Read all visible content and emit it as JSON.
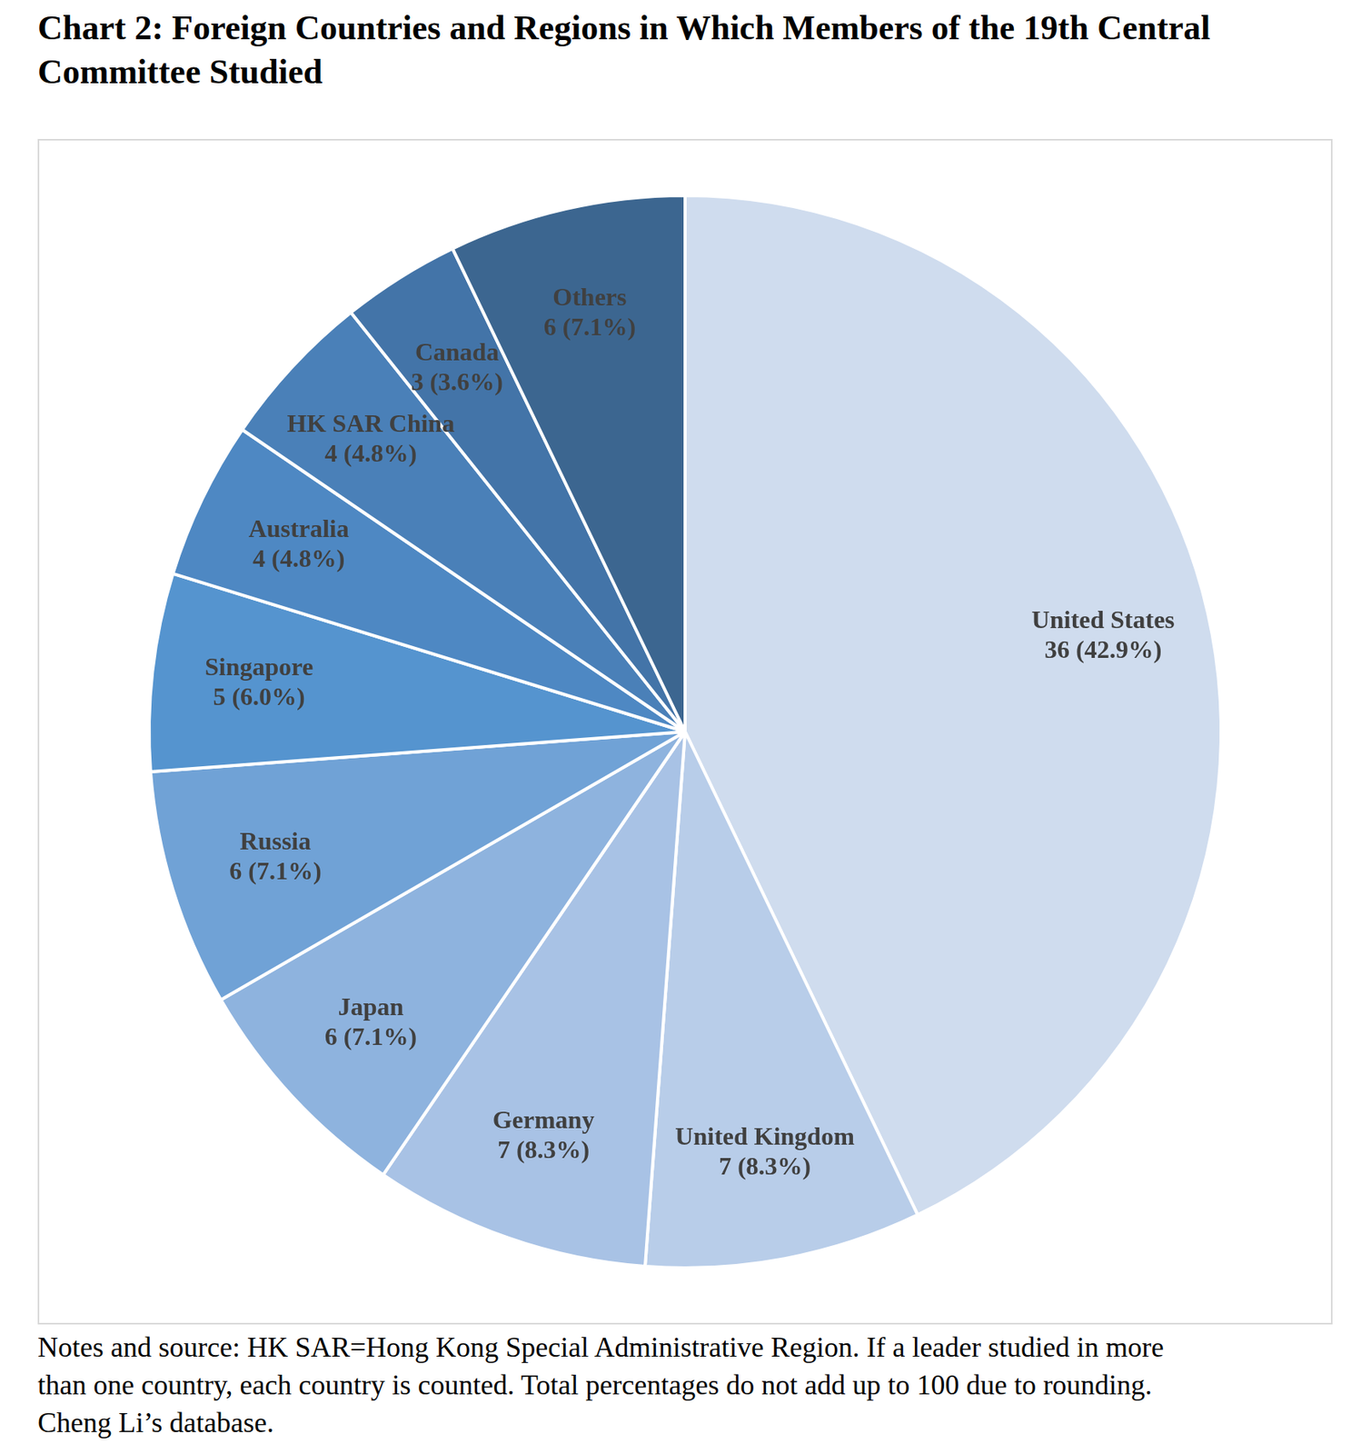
{
  "chart_data": {
    "type": "pie",
    "title": "Chart 2: Foreign Countries and Regions in Which Members of the 19th Central Committee Studied",
    "categories": [
      "United States",
      "United Kingdom",
      "Germany",
      "Japan",
      "Russia",
      "Singapore",
      "Australia",
      "HK SAR China",
      "Canada",
      "Others"
    ],
    "values": [
      36,
      7,
      7,
      6,
      6,
      5,
      4,
      4,
      3,
      6
    ],
    "value_labels": [
      "36 (42.9%)",
      "7 (8.3%)",
      "7 (8.3%)",
      "6 (7.1%)",
      "6 (7.1%)",
      "5 (6.0%)",
      "4 (4.8%)",
      "4 (4.8%)",
      "3 (3.6%)",
      "6 (7.1%)"
    ],
    "colors": [
      "#cfdcee",
      "#b8cde9",
      "#a8c2e5",
      "#8eb3de",
      "#70a2d6",
      "#5594cf",
      "#4e88c3",
      "#4a80b8",
      "#4374a8",
      "#3c6690"
    ],
    "data_labels": true,
    "legend": false,
    "annotations": [
      "Notes and source: HK SAR=Hong Kong Special Administrative Region. If a leader studied in more",
      "than one country, each country is counted. Total percentages do not add up to 100 due to rounding.",
      "Cheng Li’s database."
    ]
  }
}
